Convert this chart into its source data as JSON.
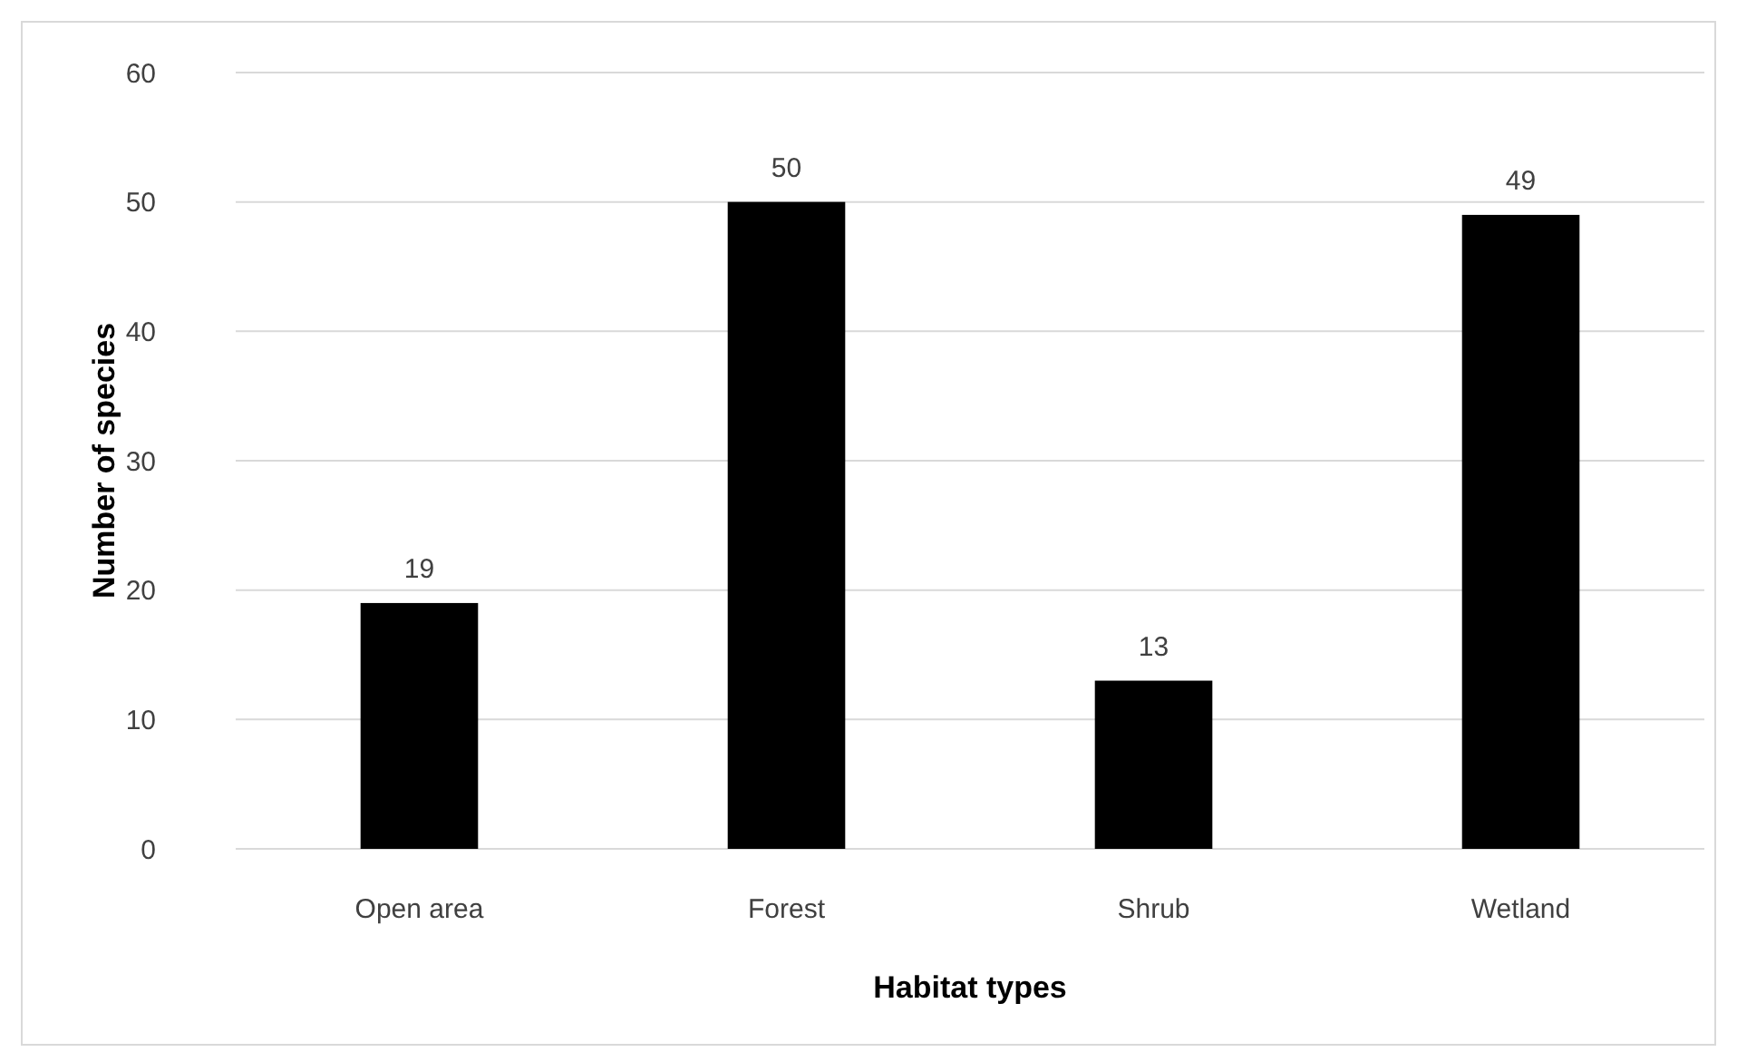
{
  "chart_data": {
    "type": "bar",
    "xlabel": "Habitat types",
    "ylabel": "Number of species",
    "categories": [
      "Open area",
      "Forest",
      "Shrub",
      "Wetland"
    ],
    "values": [
      19,
      50,
      13,
      49
    ],
    "color": "#000000",
    "ylim": [
      0,
      60
    ],
    "yticks": [
      0,
      10,
      20,
      30,
      40,
      50,
      60
    ],
    "grid": "y",
    "data_labels": true
  }
}
